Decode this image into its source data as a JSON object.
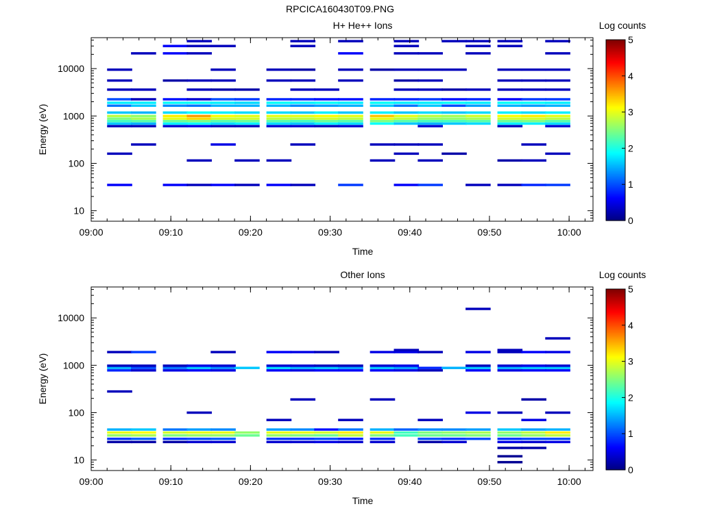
{
  "figure_title": "RPCICA160430T09.PNG",
  "colors": {
    "background": "#ffffff",
    "axis": "#000000",
    "colormap": [
      "#00007f",
      "#0000ff",
      "#007fff",
      "#00ffff",
      "#7fff7f",
      "#ffff00",
      "#ff7f00",
      "#ff0000",
      "#7f0000"
    ]
  },
  "chart_data": [
    {
      "type": "heatmap",
      "title": "H+ He++ Ions",
      "xlabel": "Time",
      "ylabel": "Energy (eV)",
      "xlim": [
        "09:00",
        "10:03"
      ],
      "ylim": [
        6,
        45000
      ],
      "y_scale": "log",
      "x_ticks": [
        "09:00",
        "09:10",
        "09:20",
        "09:30",
        "09:40",
        "09:50",
        "10:00"
      ],
      "y_ticks": [
        "10",
        "100",
        "1000",
        "10000"
      ],
      "colorbar": {
        "label": "Log counts",
        "range": [
          0,
          5
        ],
        "ticks": [
          "0",
          "1",
          "2",
          "3",
          "4",
          "5"
        ]
      },
      "time_bins": [
        "09:02",
        "09:05",
        "09:09",
        "09:12",
        "09:15",
        "09:18",
        "09:22",
        "09:25",
        "09:28",
        "09:31",
        "09:35",
        "09:38",
        "09:41",
        "09:44",
        "09:47",
        "09:51",
        "09:54",
        "09:57"
      ],
      "bin_minutes": 3.15,
      "cells": [
        {
          "e": 1000,
          "v": [
            2.8,
            2.6,
            3.2,
            3.6,
            3.1,
            3.0,
            3.0,
            3.0,
            3.1,
            3.0,
            3.4,
            3.0,
            2.8,
            2.7,
            2.9,
            3.1,
            3.2,
            3.0
          ]
        },
        {
          "e": 880,
          "v": [
            2.5,
            2.7,
            3.0,
            3.3,
            2.9,
            2.9,
            2.8,
            2.8,
            2.9,
            2.8,
            3.0,
            2.8,
            2.6,
            2.6,
            2.7,
            2.9,
            2.9,
            2.8
          ]
        },
        {
          "e": 780,
          "v": [
            2.2,
            2.3,
            2.4,
            2.5,
            2.3,
            2.4,
            2.3,
            2.2,
            2.4,
            2.3,
            2.5,
            2.3,
            2.2,
            2.2,
            2.3,
            2.4,
            2.5,
            2.3
          ]
        },
        {
          "e": 690,
          "v": [
            1.6,
            1.5,
            1.8,
            1.9,
            1.7,
            1.8,
            1.7,
            1.6,
            1.8,
            1.7,
            1.9,
            1.6,
            1.5,
            1.6,
            1.7,
            1.8,
            1.8,
            1.7
          ]
        },
        {
          "e": 610,
          "v": [
            0.3,
            0.3,
            0.4,
            0.5,
            0.3,
            0.3,
            0.4,
            0.4,
            0.3,
            0.4,
            null,
            null,
            0.4,
            null,
            null,
            0.3,
            null,
            0.4
          ]
        },
        {
          "e": 1180,
          "v": [
            1.6,
            1.5,
            1.7,
            1.9,
            1.8,
            1.7,
            1.7,
            1.6,
            1.8,
            1.6,
            1.8,
            1.6,
            1.7,
            1.6,
            1.7,
            1.8,
            1.7,
            1.8
          ]
        },
        {
          "e": 1650,
          "v": [
            1.2,
            1.6,
            1.3,
            1.2,
            1.5,
            1.5,
            1.5,
            1.3,
            1.4,
            1.5,
            1.6,
            1.2,
            1.6,
            1.0,
            1.4,
            1.5,
            1.4,
            1.5
          ]
        },
        {
          "e": 1900,
          "v": [
            1.8,
            1.8,
            1.9,
            1.9,
            1.8,
            1.7,
            1.9,
            1.8,
            1.9,
            1.8,
            1.9,
            1.8,
            1.8,
            1.9,
            1.8,
            1.9,
            1.9,
            1.8
          ]
        },
        {
          "e": 2250,
          "v": [
            1.0,
            0.3,
            0.7,
            0.4,
            1.0,
            0.9,
            0.8,
            0.8,
            0.7,
            0.7,
            0.8,
            0.8,
            0.9,
            0.7,
            0.8,
            0.6,
            0.9,
            0.9
          ]
        },
        {
          "e": 3600,
          "v": [
            0.3,
            0.3,
            null,
            0.3,
            0.2,
            0.2,
            null,
            0.3,
            0.3,
            null,
            null,
            0.3,
            0.3,
            0.2,
            0.3,
            0.3,
            0.3,
            0.3
          ]
        },
        {
          "e": 5600,
          "v": [
            0.3,
            null,
            0.2,
            0.3,
            0.3,
            null,
            0.3,
            0.3,
            null,
            0.3,
            null,
            0.2,
            0.3,
            null,
            null,
            0.3,
            0.3,
            0.3
          ]
        },
        {
          "e": 9500,
          "v": [
            0.3,
            null,
            null,
            null,
            0.3,
            null,
            0.3,
            0.2,
            null,
            0.3,
            0.2,
            0.3,
            0.3,
            0.3,
            null,
            0.3,
            0.3,
            0.3
          ]
        },
        {
          "e": 21000,
          "v": [
            null,
            0.3,
            0.6,
            0.3,
            null,
            null,
            null,
            null,
            null,
            0.6,
            null,
            0.3,
            0.3,
            null,
            0.3,
            null,
            null,
            0.3
          ]
        },
        {
          "e": 30000,
          "v": [
            null,
            null,
            0.6,
            0.3,
            0.3,
            null,
            null,
            0.3,
            null,
            null,
            null,
            0.3,
            null,
            null,
            0.3,
            0.3,
            null,
            null
          ]
        },
        {
          "e": 38000,
          "v": [
            null,
            null,
            null,
            0.3,
            null,
            null,
            null,
            0.3,
            null,
            0.3,
            null,
            0.3,
            null,
            0.3,
            0.3,
            0.3,
            null,
            0.3
          ]
        },
        {
          "e": 250,
          "v": [
            null,
            0.3,
            null,
            null,
            0.5,
            null,
            null,
            0.3,
            null,
            null,
            0.3,
            0.3,
            0.3,
            null,
            null,
            null,
            0.3,
            null
          ]
        },
        {
          "e": 160,
          "v": [
            0.3,
            null,
            null,
            null,
            null,
            null,
            null,
            null,
            null,
            null,
            null,
            0.3,
            null,
            0.2,
            null,
            null,
            null,
            0.3
          ]
        },
        {
          "e": 115,
          "v": [
            null,
            null,
            null,
            0.3,
            null,
            0.3,
            0.3,
            null,
            null,
            null,
            0.3,
            null,
            0.3,
            null,
            null,
            0.2,
            0.3,
            null
          ]
        },
        {
          "e": 35,
          "v": [
            0.6,
            null,
            0.6,
            0.3,
            0.6,
            0.3,
            0.6,
            0.3,
            null,
            0.9,
            null,
            0.6,
            0.9,
            null,
            0.3,
            0.3,
            0.8,
            0.9
          ]
        }
      ]
    },
    {
      "type": "heatmap",
      "title": "Other Ions",
      "xlabel": "Time",
      "ylabel": "Energy (eV)",
      "xlim": [
        "09:00",
        "10:03"
      ],
      "ylim": [
        6,
        45000
      ],
      "y_scale": "log",
      "x_ticks": [
        "09:00",
        "09:10",
        "09:20",
        "09:30",
        "09:40",
        "09:50",
        "10:00"
      ],
      "y_ticks": [
        "10",
        "100",
        "1000",
        "10000"
      ],
      "colorbar": {
        "label": "Log counts",
        "range": [
          0,
          5
        ],
        "ticks": [
          "0",
          "1",
          "2",
          "3",
          "4",
          "5"
        ]
      },
      "time_bins": [
        "09:02",
        "09:05",
        "09:09",
        "09:12",
        "09:15",
        "09:18",
        "09:22",
        "09:25",
        "09:28",
        "09:31",
        "09:35",
        "09:38",
        "09:41",
        "09:44",
        "09:47",
        "09:51",
        "09:54",
        "09:57"
      ],
      "bin_minutes": 3.15,
      "cells": [
        {
          "e": 38,
          "v": [
            3.0,
            3.1,
            2.9,
            3.0,
            3.0,
            2.6,
            3.0,
            3.0,
            2.9,
            3.2,
            3.0,
            2.2,
            2.5,
            2.6,
            2.7,
            2.6,
            2.8,
            3.2
          ]
        },
        {
          "e": 33,
          "v": [
            2.6,
            2.7,
            2.5,
            2.6,
            2.6,
            2.4,
            2.6,
            2.5,
            2.4,
            2.8,
            2.5,
            2.2,
            2.4,
            2.4,
            2.5,
            2.4,
            2.6,
            2.8
          ]
        },
        {
          "e": 44,
          "v": [
            1.5,
            1.6,
            1.2,
            1.4,
            1.3,
            null,
            1.4,
            1.3,
            0.7,
            1.2,
            1.5,
            1.1,
            1.3,
            1.3,
            1.4,
            1.6,
            1.4,
            1.5
          ]
        },
        {
          "e": 28,
          "v": [
            0.9,
            1.1,
            0.9,
            1.0,
            1.1,
            null,
            0.9,
            0.9,
            1.0,
            0.8,
            0.9,
            null,
            1.0,
            0.9,
            1.0,
            0.9,
            1.0,
            1.0
          ]
        },
        {
          "e": 24,
          "v": [
            0.2,
            0.2,
            0.2,
            0.4,
            0.4,
            null,
            0.4,
            0.4,
            0.5,
            0.4,
            0.4,
            null,
            0.2,
            0.4,
            null,
            0.5,
            0.4,
            0.5
          ]
        },
        {
          "e": 880,
          "v": [
            1.5,
            1.0,
            1.2,
            1.6,
            1.3,
            1.6,
            1.7,
            1.5,
            1.6,
            1.4,
            1.6,
            1.4,
            0.8,
            1.5,
            1.6,
            1.5,
            1.6,
            1.6
          ]
        },
        {
          "e": 780,
          "v": [
            0.8,
            0.4,
            0.5,
            0.6,
            0.5,
            null,
            0.6,
            0.5,
            0.6,
            0.6,
            0.6,
            0.5,
            0.3,
            null,
            0.6,
            0.5,
            0.6,
            0.6
          ]
        },
        {
          "e": 980,
          "v": [
            0.3,
            0.3,
            0.3,
            0.5,
            0.4,
            null,
            0.4,
            0.4,
            0.3,
            0.3,
            0.4,
            0.5,
            null,
            null,
            0.3,
            0.4,
            0.5,
            0.4
          ]
        },
        {
          "e": 1900,
          "v": [
            0.3,
            0.9,
            null,
            null,
            0.3,
            null,
            0.6,
            0.5,
            0.3,
            null,
            0.5,
            0.5,
            0.3,
            null,
            0.5,
            0.3,
            0.6,
            0.5
          ]
        },
        {
          "e": 2100,
          "v": [
            null,
            null,
            null,
            null,
            null,
            null,
            null,
            null,
            null,
            null,
            null,
            0.3,
            null,
            null,
            null,
            0.3,
            null,
            null
          ]
        },
        {
          "e": 280,
          "v": [
            0.3,
            null,
            null,
            null,
            null,
            null,
            null,
            null,
            null,
            null,
            null,
            null,
            null,
            null,
            null,
            null,
            null,
            null
          ]
        },
        {
          "e": 190,
          "v": [
            null,
            null,
            null,
            null,
            null,
            null,
            null,
            0.3,
            null,
            null,
            0.3,
            null,
            null,
            null,
            null,
            null,
            0.2,
            null
          ]
        },
        {
          "e": 100,
          "v": [
            null,
            null,
            null,
            0.3,
            null,
            null,
            null,
            null,
            null,
            null,
            null,
            null,
            null,
            null,
            0.5,
            0.3,
            null,
            0.3
          ]
        },
        {
          "e": 70,
          "v": [
            null,
            null,
            null,
            null,
            null,
            null,
            0.3,
            null,
            null,
            0.3,
            null,
            null,
            0.3,
            null,
            null,
            null,
            0.5,
            null
          ]
        },
        {
          "e": 15500,
          "v": [
            null,
            null,
            null,
            null,
            null,
            null,
            null,
            null,
            null,
            null,
            null,
            null,
            null,
            null,
            0.3,
            null,
            null,
            null
          ]
        },
        {
          "e": 3700,
          "v": [
            null,
            null,
            null,
            null,
            null,
            null,
            null,
            null,
            null,
            null,
            null,
            null,
            null,
            null,
            null,
            null,
            null,
            0.3
          ]
        },
        {
          "e": 18,
          "v": [
            null,
            null,
            null,
            null,
            null,
            null,
            null,
            null,
            null,
            null,
            null,
            null,
            null,
            null,
            null,
            0.2,
            0.2,
            null
          ]
        },
        {
          "e": 12,
          "v": [
            null,
            null,
            null,
            null,
            null,
            null,
            null,
            null,
            null,
            null,
            null,
            null,
            null,
            null,
            null,
            0.1,
            null,
            null
          ]
        },
        {
          "e": 9,
          "v": [
            null,
            null,
            null,
            null,
            null,
            null,
            null,
            null,
            null,
            null,
            null,
            null,
            null,
            null,
            null,
            0.1,
            null,
            null
          ]
        }
      ]
    }
  ]
}
